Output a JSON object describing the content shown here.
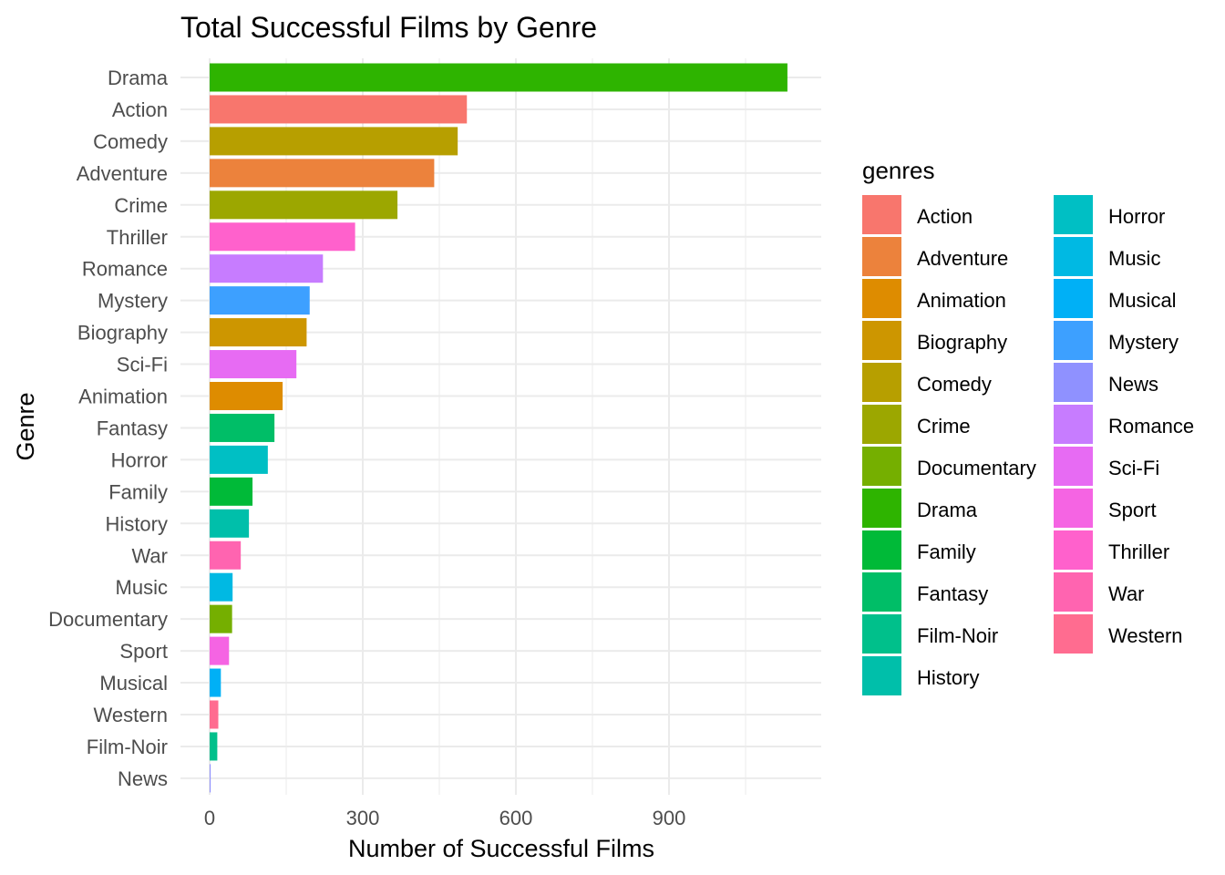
{
  "chart_data": {
    "type": "bar",
    "orientation": "horizontal",
    "title": "Total Successful Films by Genre",
    "xlabel": "Number of Successful Films",
    "ylabel": "Genre",
    "xlim": [
      0,
      1140
    ],
    "xticks": [
      0,
      300,
      600,
      900
    ],
    "grid": true,
    "legend": {
      "title": "genres",
      "placement": "right",
      "columns": 2,
      "entries": [
        {
          "name": "Action",
          "color": "#F8766D"
        },
        {
          "name": "Adventure",
          "color": "#EC823C"
        },
        {
          "name": "Animation",
          "color": "#DE8C00"
        },
        {
          "name": "Biography",
          "color": "#CD9600"
        },
        {
          "name": "Comedy",
          "color": "#B79F00"
        },
        {
          "name": "Crime",
          "color": "#9CA700"
        },
        {
          "name": "Documentary",
          "color": "#75AF00"
        },
        {
          "name": "Drama",
          "color": "#2EB400"
        },
        {
          "name": "Family",
          "color": "#00BA38"
        },
        {
          "name": "Fantasy",
          "color": "#00BE67"
        },
        {
          "name": "Film-Noir",
          "color": "#00C08B"
        },
        {
          "name": "History",
          "color": "#00BFAA"
        },
        {
          "name": "Horror",
          "color": "#00BFC4"
        },
        {
          "name": "Music",
          "color": "#00B9E3"
        },
        {
          "name": "Musical",
          "color": "#00B0F6"
        },
        {
          "name": "Mystery",
          "color": "#3DA0FF"
        },
        {
          "name": "News",
          "color": "#8F91FF"
        },
        {
          "name": "Romance",
          "color": "#C77CFF"
        },
        {
          "name": "Sci-Fi",
          "color": "#E76BF3"
        },
        {
          "name": "Sport",
          "color": "#F564E3"
        },
        {
          "name": "Thriller",
          "color": "#FF61CC"
        },
        {
          "name": "War",
          "color": "#FF64B0"
        },
        {
          "name": "Western",
          "color": "#FF6C90"
        }
      ]
    },
    "categories": [
      "Drama",
      "Action",
      "Comedy",
      "Adventure",
      "Crime",
      "Thriller",
      "Romance",
      "Mystery",
      "Biography",
      "Sci-Fi",
      "Animation",
      "Fantasy",
      "Horror",
      "Family",
      "History",
      "War",
      "Music",
      "Documentary",
      "Sport",
      "Musical",
      "Western",
      "Film-Noir",
      "News"
    ],
    "values": [
      1132,
      504,
      486,
      440,
      368,
      285,
      222,
      196,
      190,
      170,
      143,
      127,
      114,
      84,
      77,
      61,
      45,
      44,
      38,
      22,
      17,
      15,
      2
    ]
  }
}
